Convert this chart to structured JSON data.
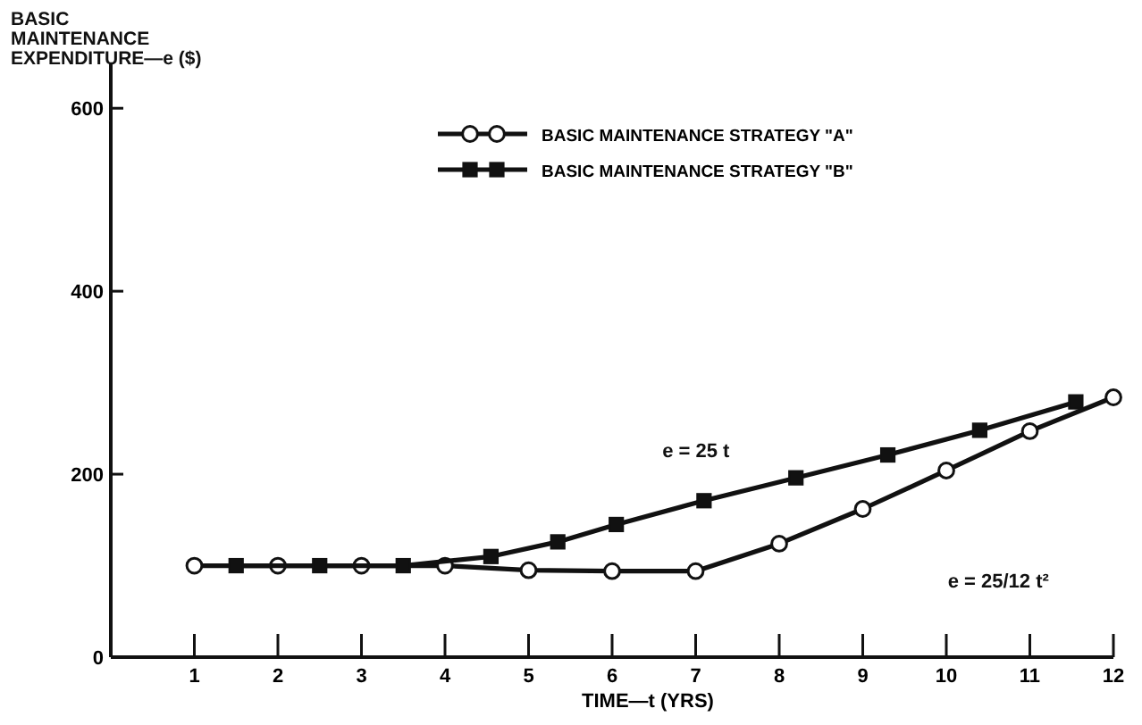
{
  "chart_data": {
    "type": "line",
    "ylabel": "BASIC MAINTENANCE EXPENDITURE—e ($)",
    "xlabel": "TIME—t (YRS)",
    "xlim": [
      0,
      12
    ],
    "ylim": [
      0,
      650
    ],
    "xticks": [
      1,
      2,
      3,
      4,
      5,
      6,
      7,
      8,
      9,
      10,
      11,
      12
    ],
    "yticks": [
      0,
      200,
      400,
      600
    ],
    "grid": false,
    "legend": "top",
    "line_style": "solid",
    "series": [
      {
        "name": "BASIC MAINTENANCE STRATEGY \"A\"",
        "color": "#111111",
        "marker": "circle",
        "x": [
          1,
          2,
          3,
          4,
          5,
          6,
          7,
          8,
          9,
          10,
          11,
          12
        ],
        "values": [
          100,
          100,
          100,
          100,
          95,
          94,
          94,
          124,
          162,
          204,
          247,
          284
        ]
      },
      {
        "name": "BASIC MAINTENANCE STRATEGY \"B\"",
        "color": "#111111",
        "marker": "square",
        "x": [
          1.5,
          2.5,
          3.5,
          4.55,
          5.35,
          6.05,
          7.1,
          8.2,
          9.3,
          10.4,
          11.55
        ],
        "values": [
          100,
          100,
          100,
          110,
          126,
          145,
          171,
          196,
          221,
          248,
          279
        ]
      }
    ],
    "annotations": [
      "e = 25 t",
      "e = 25/12 t²"
    ]
  }
}
